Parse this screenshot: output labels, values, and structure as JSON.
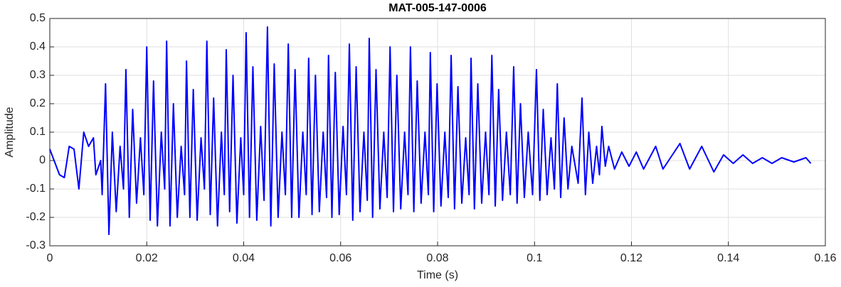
{
  "chart_data": {
    "type": "line",
    "title": "MAT-005-147-0006",
    "x_label": "Time (s)",
    "y_label": "Amplitude",
    "xlim": [
      0,
      0.16
    ],
    "ylim": [
      -0.3,
      0.5
    ],
    "xticks": [
      0,
      0.02,
      0.04,
      0.06,
      0.08,
      0.1,
      0.12,
      0.14,
      0.16
    ],
    "yticks": [
      -0.3,
      -0.2,
      -0.1,
      0,
      0.1,
      0.2,
      0.3,
      0.4,
      0.5
    ],
    "grid": true,
    "x": [
      0,
      0.002,
      0.003,
      0.004,
      0.005,
      0.006,
      0.007,
      0.008,
      0.009,
      0.0095,
      0.0105,
      0.0108,
      0.0115,
      0.0122,
      0.0129,
      0.0137,
      0.0145,
      0.0152,
      0.0157,
      0.0164,
      0.0171,
      0.0179,
      0.0187,
      0.0194,
      0.02,
      0.0207,
      0.0214,
      0.0222,
      0.023,
      0.0237,
      0.0241,
      0.0248,
      0.0255,
      0.0263,
      0.0271,
      0.0278,
      0.0282,
      0.0289,
      0.0296,
      0.0304,
      0.0312,
      0.0319,
      0.0324,
      0.0331,
      0.0338,
      0.0346,
      0.0354,
      0.036,
      0.0364,
      0.0371,
      0.0378,
      0.0386,
      0.0394,
      0.04,
      0.0405,
      0.0412,
      0.0419,
      0.0427,
      0.0435,
      0.0442,
      0.0449,
      0.0456,
      0.0463,
      0.0471,
      0.0479,
      0.0486,
      0.0492,
      0.0499,
      0.0506,
      0.0514,
      0.0522,
      0.0529,
      0.0534,
      0.0541,
      0.0548,
      0.0556,
      0.0564,
      0.0571,
      0.0575,
      0.0582,
      0.0589,
      0.0597,
      0.0605,
      0.0612,
      0.0618,
      0.0625,
      0.0632,
      0.064,
      0.0648,
      0.0655,
      0.0659,
      0.0666,
      0.0673,
      0.0681,
      0.0689,
      0.0696,
      0.0702,
      0.0709,
      0.0716,
      0.0724,
      0.0732,
      0.0739,
      0.0744,
      0.0751,
      0.0758,
      0.0766,
      0.0774,
      0.0781,
      0.0785,
      0.0792,
      0.0799,
      0.0807,
      0.0815,
      0.0822,
      0.0828,
      0.0835,
      0.0842,
      0.085,
      0.0858,
      0.0865,
      0.0869,
      0.0876,
      0.0883,
      0.0891,
      0.0899,
      0.0906,
      0.0912,
      0.0919,
      0.0926,
      0.0934,
      0.0942,
      0.095,
      0.0957,
      0.0964,
      0.0971,
      0.0979,
      0.0987,
      0.0996,
      0.1004,
      0.1011,
      0.1018,
      0.1026,
      0.1034,
      0.1041,
      0.1047,
      0.1054,
      0.1061,
      0.1069,
      0.1077,
      0.109,
      0.1098,
      0.1105,
      0.1112,
      0.112,
      0.1128,
      0.1134,
      0.1139,
      0.1146,
      0.1153,
      0.1165,
      0.118,
      0.1195,
      0.121,
      0.1225,
      0.125,
      0.1265,
      0.13,
      0.132,
      0.1345,
      0.137,
      0.139,
      0.141,
      0.143,
      0.145,
      0.147,
      0.149,
      0.151,
      0.1535,
      0.156,
      0.157
    ],
    "series": [
      {
        "name": "Amplitude",
        "color": "#0000ff",
        "values": [
          0.04,
          -0.05,
          -0.06,
          0.05,
          0.04,
          -0.1,
          0.1,
          0.05,
          0.08,
          -0.05,
          0.0,
          -0.12,
          0.27,
          -0.26,
          0.1,
          -0.18,
          0.05,
          -0.1,
          0.32,
          -0.2,
          0.18,
          -0.15,
          0.08,
          -0.12,
          0.4,
          -0.21,
          0.28,
          -0.23,
          0.1,
          -0.1,
          0.42,
          -0.23,
          0.2,
          -0.2,
          0.05,
          -0.12,
          0.35,
          -0.2,
          0.25,
          -0.21,
          0.08,
          -0.1,
          0.42,
          -0.19,
          0.22,
          -0.23,
          0.1,
          -0.12,
          0.39,
          -0.18,
          0.3,
          -0.22,
          0.08,
          -0.12,
          0.45,
          -0.2,
          0.33,
          -0.21,
          0.12,
          -0.14,
          0.47,
          -0.23,
          0.34,
          -0.2,
          0.1,
          -0.12,
          0.41,
          -0.2,
          0.32,
          -0.2,
          0.1,
          -0.12,
          0.36,
          -0.19,
          0.3,
          -0.18,
          0.1,
          -0.13,
          0.37,
          -0.2,
          0.31,
          -0.19,
          0.12,
          -0.12,
          0.41,
          -0.21,
          0.33,
          -0.18,
          0.1,
          -0.14,
          0.43,
          -0.2,
          0.32,
          -0.17,
          0.1,
          -0.13,
          0.4,
          -0.18,
          0.3,
          -0.17,
          0.1,
          -0.12,
          0.4,
          -0.18,
          0.28,
          -0.15,
          0.1,
          -0.12,
          0.38,
          -0.18,
          0.27,
          -0.16,
          0.1,
          -0.13,
          0.37,
          -0.17,
          0.26,
          -0.15,
          0.08,
          -0.12,
          0.36,
          -0.17,
          0.27,
          -0.15,
          0.1,
          -0.12,
          0.37,
          -0.16,
          0.25,
          -0.14,
          0.1,
          -0.12,
          0.33,
          -0.15,
          0.2,
          -0.13,
          0.1,
          -0.12,
          0.32,
          -0.14,
          0.18,
          -0.12,
          0.08,
          -0.1,
          0.27,
          -0.13,
          0.15,
          -0.1,
          0.05,
          -0.08,
          0.22,
          -0.12,
          0.1,
          -0.08,
          0.05,
          -0.05,
          0.12,
          -0.02,
          0.05,
          -0.03,
          0.03,
          -0.02,
          0.03,
          -0.03,
          0.05,
          -0.03,
          0.06,
          -0.03,
          0.05,
          -0.04,
          0.02,
          -0.01,
          0.02,
          -0.01,
          0.01,
          -0.01,
          0.01,
          -0.005,
          0.01,
          -0.01
        ]
      }
    ]
  }
}
